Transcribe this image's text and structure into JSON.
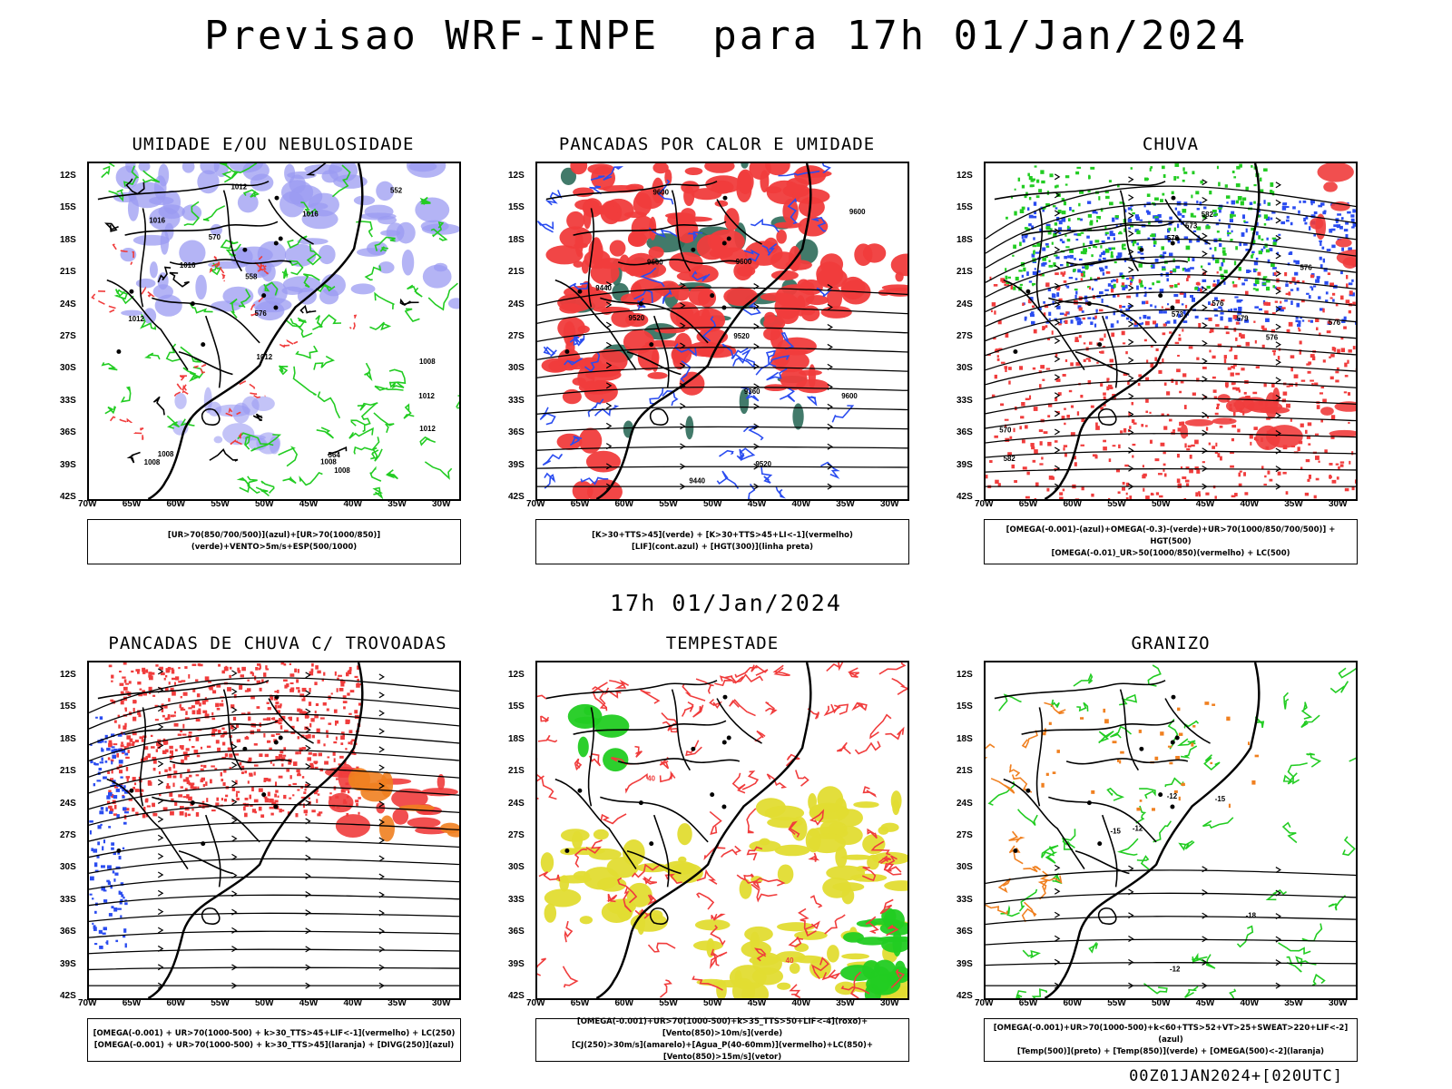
{
  "header": {
    "title": "Previsao WRF-INPE  para 17h 01/Jan/2024",
    "mid_title": "17h 01/Jan/2024",
    "footer": "00Z01JAN2024+[020UTC]"
  },
  "axes": {
    "lat_labels": [
      "12S",
      "15S",
      "18S",
      "21S",
      "24S",
      "27S",
      "30S",
      "33S",
      "36S",
      "39S",
      "42S"
    ],
    "lon_labels": [
      "70W",
      "65W",
      "60W",
      "55W",
      "50W",
      "45W",
      "40W",
      "35W",
      "30W"
    ]
  },
  "colors": {
    "blue_fill": "#9b9bf2",
    "green_line": "#22cc22",
    "red_fill": "#f03c3c",
    "dark_green": "#2e6b5a",
    "yellow_fill": "#e2dc32",
    "orange": "#f08020",
    "blue_line": "#2a4cf0"
  },
  "panels": [
    {
      "title": "UMIDADE E/OU NEBULOSIDADE",
      "legend": [
        "[UR>70(850/700/500)](azul)+[UR>70(1000/850)](verde)+VENTO>5m/s+ESP(500/1000)"
      ],
      "contour_labels": [
        "1008",
        "1008",
        "1008",
        "1012",
        "1012",
        "1012",
        "1016",
        "1016",
        "1012",
        "1016",
        "1008",
        "570",
        "576",
        "564",
        "558",
        "552",
        "1008",
        "1012"
      ]
    },
    {
      "title": "PANCADAS POR CALOR E UMIDADE",
      "legend": [
        "[K>30+TTS>45](verde) + [K>30+TTS>45+LI<-1](vermelho)",
        "[LIF](cont.azul) + [HGT(300)](linha preta)"
      ],
      "contour_labels": [
        "9600",
        "9600",
        "9600",
        "9600",
        "9520",
        "9600",
        "9520",
        "9440",
        "9440",
        "9360",
        "9520"
      ]
    },
    {
      "title": "CHUVA",
      "legend": [
        "[OMEGA(-0.001)-(azul)+OMEGA(-0.3)-(verde)+UR>70(1000/850/700/500)] + HGT(500)",
        "[OMEGA(-0.01)_UR>50(1000/850)(vermelho) + LC(500)"
      ],
      "contour_labels": [
        "582",
        "576",
        "579",
        "576",
        "573",
        "570",
        "576",
        "573",
        "570",
        "576",
        "582"
      ]
    },
    {
      "title": "PANCADAS DE CHUVA C/ TROVOADAS",
      "legend": [
        "[OMEGA(-0.001) + UR>70(1000-500) + k>30_TTS>45+LIF<-1](vermelho) + LC(250)",
        "[OMEGA(-0.001) + UR>70(1000-500) + k>30_TTS>45](laranja) + [DIVG(250)](azul)"
      ],
      "contour_labels": []
    },
    {
      "title": "TEMPESTADE",
      "legend": [
        "[OMEGA(-0.001)+UR>70(1000-500)+k>35_TTS>50+LIF<-4](roxo)+[Vento(850)>10m/s](verde)",
        "[CJ(250)>30m/s](amarelo)+[Agua_P(40-60mm)](vermelho)+LC(850)+[Vento(850)>15m/s](vetor)"
      ],
      "contour_labels": [
        "40",
        "40"
      ]
    },
    {
      "title": "GRANIZO",
      "legend": [
        "[OMEGA(-0.001)+UR>70(1000-500)+k<60+TTS>52+VT>25+SWEAT>220+LIF<-2](azul)",
        "[Temp(500)](preto) + [Temp(850)](verde) + [OMEGA(500)<-2](laranja)"
      ],
      "contour_labels": [
        "-12",
        "-12",
        "-15",
        "-15",
        "-18",
        "-12"
      ]
    }
  ]
}
